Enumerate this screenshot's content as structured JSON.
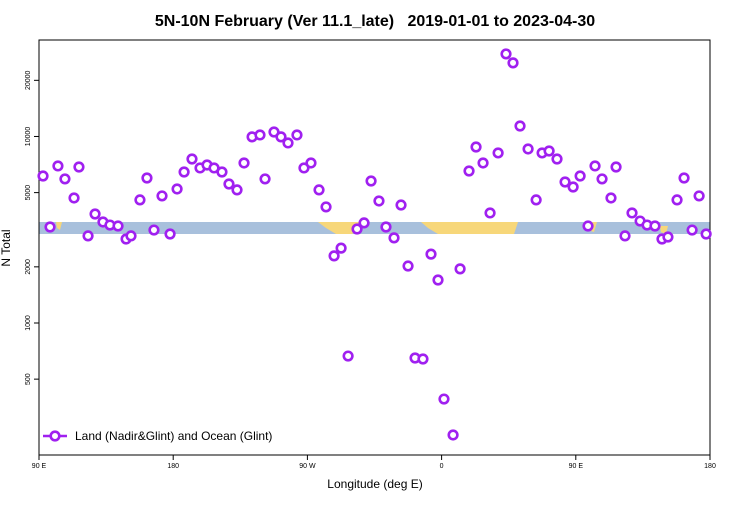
{
  "chart_data": {
    "type": "scatter",
    "title": "5N-10N February (Ver 11.1_late)   2019-01-01 to 2023-04-30",
    "xlabel": "Longitude (deg E)",
    "ylabel": "N Total",
    "xlim": [
      90,
      540
    ],
    "xticks": [
      {
        "value": 90,
        "label": "90 E"
      },
      180,
      {
        "value": 270,
        "label": "90 W"
      },
      {
        "value": 360,
        "label": "0"
      },
      {
        "value": 450,
        "label": "90 E"
      },
      {
        "value": 540,
        "label": "180"
      }
    ],
    "ylim": [
      196,
      32900
    ],
    "log_y": true,
    "yticks": [
      500,
      1000,
      2000,
      5000,
      10000,
      20000
    ],
    "legend": "bottom-left",
    "series": [
      {
        "name": "Land (Nadir&Glint) and Ocean (Glint)",
        "color": "#a020f0",
        "x": [
          92.7,
          97.4,
          102.7,
          107.4,
          113.5,
          116.8,
          122.9,
          127.6,
          132.9,
          137.6,
          143.0,
          148.4,
          151.7,
          157.7,
          162.4,
          167.1,
          172.5,
          177.9,
          182.6,
          187.3,
          192.6,
          198.0,
          202.7,
          207.4,
          212.7,
          217.4,
          222.8,
          227.5,
          232.9,
          238.2,
          241.6,
          247.6,
          252.3,
          257.0,
          263.0,
          267.7,
          272.4,
          277.8,
          282.5,
          287.9,
          292.6,
          297.3,
          303.3,
          308.0,
          312.7,
          318.0,
          322.7,
          328.1,
          332.8,
          337.5,
          342.2,
          347.5,
          352.9,
          357.6,
          361.6,
          367.7,
          372.4,
          378.4,
          383.1,
          387.8,
          392.5,
          397.9,
          403.2,
          407.9,
          412.6,
          418.0,
          423.4,
          427.4,
          432.1,
          437.4,
          442.8,
          448.2,
          452.9,
          458.2,
          462.9,
          467.6,
          473.6,
          477.0,
          483.0,
          487.7,
          493.1,
          497.8,
          503.1,
          507.8,
          511.8,
          517.9,
          522.6,
          528.0,
          532.7,
          537.4
        ],
        "values": [
          6140,
          3270,
          6950,
          5920,
          4680,
          6860,
          2930,
          3840,
          3480,
          3350,
          3310,
          2820,
          2930,
          4570,
          5990,
          3150,
          4800,
          3000,
          5230,
          6450,
          7570,
          6780,
          7030,
          6780,
          6450,
          5560,
          5170,
          7210,
          9950,
          10190,
          5920,
          10570,
          9950,
          9230,
          10190,
          6780,
          7210,
          5170,
          4190,
          2290,
          2520,
          665,
          3190,
          3440,
          5770,
          4510,
          3270,
          2860,
          4290,
          2020,
          649,
          641,
          2340,
          1700,
          391,
          251,
          1950,
          6530,
          8780,
          7210,
          3890,
          8160,
          27700,
          24800,
          11380,
          8570,
          4570,
          8160,
          8360,
          7570,
          5700,
          5360,
          6140,
          3310,
          6950,
          5920,
          4680,
          6860,
          2930,
          3890,
          3520,
          3350,
          3310,
          2820,
          2890,
          4570,
          5990,
          3150,
          4800,
          3000
        ]
      }
    ]
  }
}
